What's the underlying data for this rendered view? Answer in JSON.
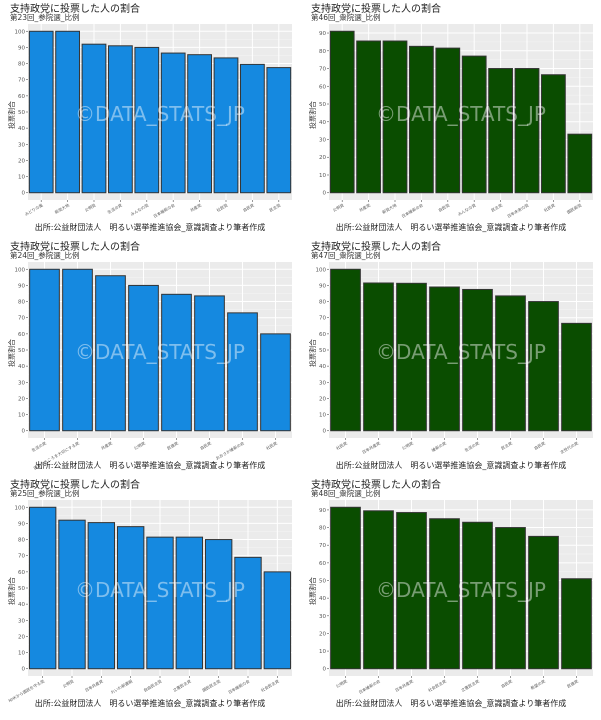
{
  "common": {
    "title": "支持政党に投票した人の割合",
    "ylabel": "投票割合",
    "source": "出所:公益財団法人　明るい選挙推進協会_意識調査より筆者作成",
    "watermark": "©DATA_STATS_JP"
  },
  "colors": {
    "sangiin": "#1589e0",
    "shugiin": "#0a4d00",
    "panel_bg": "#ebebeb",
    "grid": "#ffffff",
    "bar_border": "#333333"
  },
  "chart_data": [
    {
      "type": "bar",
      "title": "支持政党に投票した人の割合",
      "subtitle": "第23回_参院選_比例",
      "xlabel": "",
      "ylabel": "投票割合",
      "color": "sangiin",
      "ylim": [
        0,
        100
      ],
      "yticks": [
        0,
        10,
        20,
        30,
        40,
        50,
        60,
        70,
        80,
        90,
        100
      ],
      "categories": [
        "みどりの風",
        "新党大地",
        "公明党",
        "生活の党",
        "みんなの党",
        "日本維新の会",
        "共産党",
        "社民党",
        "自民党",
        "民主党"
      ],
      "values": [
        100,
        100,
        92,
        91,
        90,
        86.5,
        85.5,
        83.5,
        79.5,
        77.5
      ]
    },
    {
      "type": "bar",
      "title": "支持政党に投票した人の割合",
      "subtitle": "第46回_衆院選_比例",
      "xlabel": "",
      "ylabel": "投票割合",
      "color": "shugiin",
      "ylim": [
        0,
        91
      ],
      "yticks": [
        0,
        10,
        20,
        30,
        40,
        50,
        60,
        70,
        80,
        90
      ],
      "categories": [
        "公明党",
        "共産党",
        "新党大地",
        "日本維新の会",
        "自民党",
        "みんなの党",
        "民主党",
        "日本未来の党",
        "社民党",
        "国民新党"
      ],
      "values": [
        91,
        85.5,
        85.5,
        82.5,
        81.5,
        77,
        70,
        70,
        66.5,
        33
      ]
    },
    {
      "type": "bar",
      "title": "支持政党に投票した人の割合",
      "subtitle": "第24回_参院選_比例",
      "xlabel": "",
      "ylabel": "投票割合",
      "color": "sangiin",
      "ylim": [
        0,
        100
      ],
      "yticks": [
        0,
        10,
        20,
        30,
        40,
        50,
        60,
        70,
        80,
        90,
        100
      ],
      "categories": [
        "生活の党",
        "日本のこころを大切にする党",
        "共産党",
        "公明党",
        "民進党",
        "自民党",
        "おおさか維新の会",
        "社民党"
      ],
      "values": [
        100,
        100,
        96,
        90,
        84.5,
        83.5,
        73,
        60
      ]
    },
    {
      "type": "bar",
      "title": "支持政党に投票した人の割合",
      "subtitle": "第47回_衆院選_比例",
      "xlabel": "",
      "ylabel": "投票割合",
      "color": "shugiin",
      "ylim": [
        0,
        100
      ],
      "yticks": [
        0,
        10,
        20,
        30,
        40,
        50,
        60,
        70,
        80,
        90,
        100
      ],
      "categories": [
        "社民党",
        "日本共産党",
        "公明党",
        "維新の党",
        "生活の党",
        "民主党",
        "自民党",
        "次世代の党"
      ],
      "values": [
        100,
        91.5,
        91.3,
        89,
        87.5,
        83.5,
        80,
        66.5
      ]
    },
    {
      "type": "bar",
      "title": "支持政党に投票した人の割合",
      "subtitle": "第25回_参院選_比例",
      "xlabel": "",
      "ylabel": "投票割合",
      "color": "sangiin",
      "ylim": [
        0,
        100
      ],
      "yticks": [
        0,
        10,
        20,
        30,
        40,
        50,
        60,
        70,
        80,
        90,
        100
      ],
      "categories": [
        "NHKから国民を守る党",
        "公明党",
        "日本共産党",
        "れいわ新選組",
        "自由民主党",
        "立憲民主党",
        "国民民主党",
        "日本維新の会",
        "社会民主党"
      ],
      "values": [
        100,
        92,
        90.5,
        88,
        81.5,
        81.5,
        80,
        69,
        60
      ]
    },
    {
      "type": "bar",
      "title": "支持政党に投票した人の割合",
      "subtitle": "第48回_衆院選_比例",
      "xlabel": "",
      "ylabel": "投票割合",
      "color": "shugiin",
      "ylim": [
        0,
        91.5
      ],
      "yticks": [
        0,
        10,
        20,
        30,
        40,
        50,
        60,
        70,
        80,
        90
      ],
      "categories": [
        "公明党",
        "日本維新の会",
        "日本共産党",
        "社会民主党",
        "立憲民主党",
        "自民党",
        "希望の党",
        "民進党"
      ],
      "values": [
        91.5,
        89.5,
        88.5,
        85,
        83,
        80,
        75,
        51
      ]
    }
  ]
}
